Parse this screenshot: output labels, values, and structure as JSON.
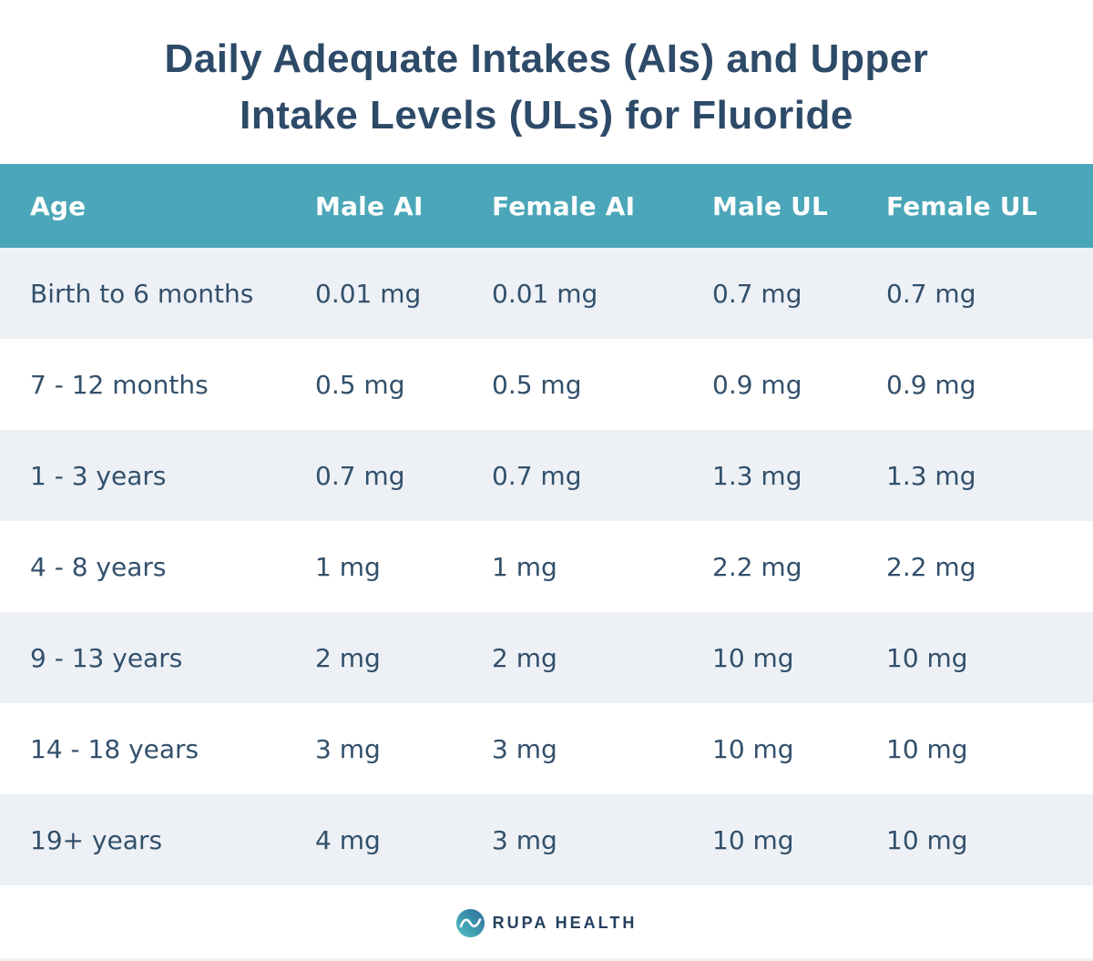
{
  "title": {
    "line1": "Daily Adequate Intakes (AIs) and Upper",
    "line2": "Intake Levels (ULs) for Fluoride"
  },
  "chart_data": {
    "type": "table",
    "title": "Daily Adequate Intakes (AIs) and Upper Intake Levels (ULs) for Fluoride",
    "columns": [
      "Age",
      "Male AI",
      "Female AI",
      "Male UL",
      "Female UL"
    ],
    "rows": [
      [
        "Birth to 6 months",
        "0.01 mg",
        "0.01 mg",
        "0.7 mg",
        "0.7 mg"
      ],
      [
        "7 - 12 months",
        "0.5 mg",
        "0.5 mg",
        "0.9 mg",
        "0.9 mg"
      ],
      [
        "1 - 3 years",
        "0.7 mg",
        "0.7 mg",
        "1.3 mg",
        "1.3 mg"
      ],
      [
        "4 - 8 years",
        "1 mg",
        "1 mg",
        "2.2 mg",
        "2.2 mg"
      ],
      [
        "9 - 13 years",
        "2 mg",
        "2 mg",
        "10 mg",
        "10 mg"
      ],
      [
        "14 - 18 years",
        "3 mg",
        "3 mg",
        "10 mg",
        "10 mg"
      ],
      [
        "19+ years",
        "4 mg",
        "3 mg",
        "10 mg",
        "10 mg"
      ]
    ],
    "unit": "mg"
  },
  "footer": {
    "brand": "RUPA HEALTH"
  },
  "colors": {
    "header_teal": "#4aa6b8",
    "title_navy": "#2d4a68",
    "cell_text": "#33506b",
    "row_alt_bg": "#edf1f6",
    "row_bg": "#ffffff",
    "brand_navy": "#24405e",
    "logo_gradient_start": "#56c2c2",
    "logo_gradient_end": "#2f6c9e"
  }
}
